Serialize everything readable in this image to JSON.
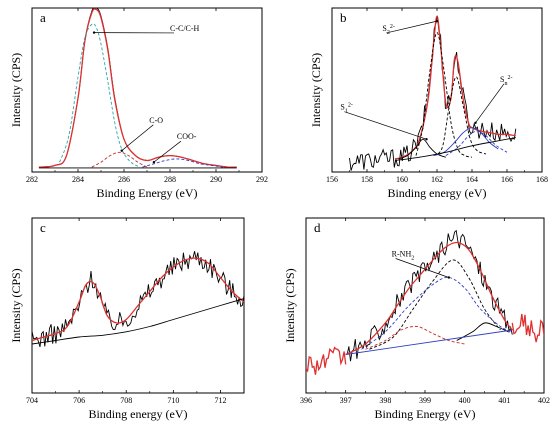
{
  "chart_data": [
    {
      "id": "a",
      "type": "line",
      "panel_label": "a",
      "xlabel": "Binding Energy (eV)",
      "ylabel": "Intensity (CPS)",
      "xlim": [
        282,
        292
      ],
      "ylim": [
        0,
        1
      ],
      "xticks": [
        "282",
        "284",
        "286",
        "288",
        "290",
        "292"
      ],
      "series": [
        {
          "color": "#000000",
          "style": "solid",
          "x": [
            282.3,
            283.0,
            283.5,
            284.0,
            284.3,
            284.6,
            284.8,
            285.0,
            285.3,
            285.6,
            286.0,
            286.5,
            287.0,
            287.5,
            288.0,
            288.5,
            289.0,
            289.5,
            290.0,
            290.5,
            290.9
          ],
          "y": [
            0.03,
            0.04,
            0.1,
            0.45,
            0.8,
            0.98,
            1.0,
            0.95,
            0.75,
            0.45,
            0.2,
            0.1,
            0.07,
            0.09,
            0.1,
            0.09,
            0.07,
            0.05,
            0.04,
            0.03,
            0.03
          ]
        },
        {
          "color": "#e03030",
          "style": "solid",
          "x": [
            282.3,
            283.0,
            283.5,
            284.0,
            284.3,
            284.6,
            284.8,
            285.0,
            285.3,
            285.6,
            286.0,
            286.5,
            287.0,
            287.5,
            288.0,
            288.5,
            289.0,
            289.5,
            290.0,
            290.5,
            290.9
          ],
          "y": [
            0.03,
            0.04,
            0.1,
            0.45,
            0.8,
            0.97,
            0.99,
            0.94,
            0.74,
            0.44,
            0.2,
            0.1,
            0.07,
            0.09,
            0.1,
            0.09,
            0.07,
            0.05,
            0.04,
            0.03,
            0.03
          ]
        },
        {
          "color": "#2aa7a7",
          "style": "dashed",
          "x": [
            283.2,
            283.6,
            284.0,
            284.3,
            284.6,
            284.8,
            285.0,
            285.3,
            285.6,
            285.9,
            286.3,
            286.7
          ],
          "y": [
            0.06,
            0.22,
            0.58,
            0.82,
            0.9,
            0.88,
            0.78,
            0.55,
            0.3,
            0.14,
            0.06,
            0.03
          ]
        },
        {
          "color": "#cc2a2a",
          "style": "dashed",
          "x": [
            284.6,
            285.0,
            285.4,
            285.8,
            286.2,
            286.6,
            287.0
          ],
          "y": [
            0.03,
            0.06,
            0.1,
            0.12,
            0.1,
            0.06,
            0.03
          ]
        },
        {
          "color": "#3040c0",
          "style": "dashed",
          "x": [
            286.8,
            287.3,
            287.8,
            288.3,
            288.8,
            289.3,
            289.8,
            290.3
          ],
          "y": [
            0.03,
            0.05,
            0.07,
            0.08,
            0.07,
            0.05,
            0.04,
            0.03
          ]
        },
        {
          "color": "#000000",
          "style": "solid",
          "x": [
            282.3,
            290.9
          ],
          "y": [
            0.025,
            0.025
          ]
        }
      ],
      "annotations": [
        "C-C/C-H",
        "C-O",
        "COO-"
      ]
    },
    {
      "id": "b",
      "type": "line",
      "panel_label": "b",
      "xlabel": "Binding energy (eV)",
      "ylabel": "Intensity (CPS)",
      "xlim": [
        156,
        168
      ],
      "ylim": [
        0,
        1
      ],
      "xticks": [
        "156",
        "158",
        "160",
        "162",
        "164",
        "166",
        "168"
      ],
      "series": [
        {
          "color": "#000000",
          "style": "noisy",
          "x": [
            157.0,
            158.0,
            159.0,
            160.0,
            160.5,
            161.0,
            161.5,
            161.8,
            162.0,
            162.2,
            162.5,
            162.8,
            163.0,
            163.2,
            163.5,
            163.8,
            164.0,
            164.5,
            165.0,
            165.5,
            166.0,
            166.5
          ],
          "y": [
            0.06,
            0.07,
            0.08,
            0.09,
            0.12,
            0.2,
            0.45,
            0.8,
            0.97,
            0.8,
            0.42,
            0.45,
            0.7,
            0.68,
            0.45,
            0.3,
            0.27,
            0.26,
            0.25,
            0.24,
            0.24,
            0.22
          ]
        },
        {
          "color": "#e03030",
          "style": "solid",
          "x": [
            159.6,
            160.0,
            160.5,
            161.0,
            161.5,
            161.8,
            162.0,
            162.2,
            162.5,
            162.8,
            163.0,
            163.2,
            163.5,
            163.8,
            164.0,
            164.5,
            165.0,
            165.5,
            166.0,
            166.5
          ],
          "y": [
            0.08,
            0.09,
            0.12,
            0.2,
            0.45,
            0.78,
            0.95,
            0.78,
            0.42,
            0.45,
            0.69,
            0.67,
            0.44,
            0.3,
            0.27,
            0.25,
            0.24,
            0.23,
            0.23,
            0.22
          ]
        },
        {
          "color": "#000000",
          "style": "dashed",
          "x": [
            160.8,
            161.2,
            161.6,
            162.0,
            162.4,
            162.8,
            163.2,
            163.6,
            164.0
          ],
          "y": [
            0.1,
            0.28,
            0.62,
            0.85,
            0.62,
            0.3,
            0.14,
            0.1,
            0.09
          ]
        },
        {
          "color": "#000000",
          "style": "dashed",
          "x": [
            161.8,
            162.3,
            162.7,
            163.1,
            163.5,
            163.9,
            164.3,
            164.8
          ],
          "y": [
            0.1,
            0.15,
            0.4,
            0.58,
            0.4,
            0.2,
            0.13,
            0.11
          ]
        },
        {
          "color": "#000000",
          "style": "solid",
          "x": [
            159.8,
            160.3,
            160.8,
            161.2,
            161.6,
            162.0,
            162.5
          ],
          "y": [
            0.08,
            0.1,
            0.15,
            0.2,
            0.15,
            0.11,
            0.09
          ]
        },
        {
          "color": "#3040c0",
          "style": "solid",
          "x": [
            161.8,
            162.4,
            163.0,
            163.5,
            164.0,
            164.5,
            165.0,
            165.5
          ],
          "y": [
            0.1,
            0.12,
            0.18,
            0.24,
            0.27,
            0.24,
            0.18,
            0.14
          ]
        },
        {
          "color": "#3040c0",
          "style": "dashed",
          "x": [
            162.5,
            163.2,
            163.8,
            164.3,
            164.8,
            165.4,
            166.0
          ],
          "y": [
            0.1,
            0.15,
            0.22,
            0.25,
            0.22,
            0.16,
            0.12
          ]
        },
        {
          "color": "#000000",
          "style": "solid",
          "x": [
            159.6,
            161.0,
            162.5,
            164.0,
            165.5,
            166.5
          ],
          "y": [
            0.07,
            0.09,
            0.12,
            0.16,
            0.19,
            0.21
          ]
        }
      ],
      "annotations": [
        "S",
        "S",
        "S"
      ]
    },
    {
      "id": "c",
      "type": "line",
      "panel_label": "c",
      "xlabel": "Binding energy (eV)",
      "ylabel": "Intensity (CPS)",
      "xlim": [
        704,
        713
      ],
      "ylim": [
        0,
        1
      ],
      "xticks": [
        "704",
        "706",
        "708",
        "710",
        "712"
      ],
      "series": [
        {
          "color": "#000000",
          "style": "noisy",
          "x": [
            704.0,
            704.5,
            705.0,
            705.5,
            706.0,
            706.3,
            706.6,
            706.9,
            707.2,
            707.6,
            708.0,
            708.5,
            709.0,
            709.5,
            710.0,
            710.5,
            711.0,
            711.5,
            712.0,
            712.5,
            713.0
          ],
          "y": [
            0.3,
            0.32,
            0.34,
            0.38,
            0.5,
            0.62,
            0.66,
            0.55,
            0.42,
            0.4,
            0.42,
            0.5,
            0.58,
            0.66,
            0.72,
            0.76,
            0.78,
            0.74,
            0.66,
            0.58,
            0.54
          ]
        },
        {
          "color": "#e03030",
          "style": "solid",
          "x": [
            704.0,
            704.5,
            705.0,
            705.5,
            706.0,
            706.3,
            706.6,
            706.9,
            707.2,
            707.6,
            708.0,
            708.5,
            709.0,
            709.5,
            710.0,
            710.5,
            711.0,
            711.5,
            712.0,
            712.5,
            713.0
          ],
          "y": [
            0.3,
            0.32,
            0.34,
            0.38,
            0.52,
            0.62,
            0.63,
            0.55,
            0.44,
            0.4,
            0.42,
            0.5,
            0.58,
            0.66,
            0.72,
            0.76,
            0.77,
            0.74,
            0.66,
            0.58,
            0.52
          ]
        },
        {
          "color": "#000000",
          "style": "solid",
          "x": [
            704.0,
            705.0,
            706.0,
            707.0,
            708.0,
            709.0,
            710.0,
            711.0,
            712.0,
            713.0
          ],
          "y": [
            0.28,
            0.3,
            0.32,
            0.33,
            0.35,
            0.38,
            0.42,
            0.46,
            0.5,
            0.54
          ]
        }
      ],
      "annotations": []
    },
    {
      "id": "d",
      "type": "line",
      "panel_label": "d",
      "xlabel": "Binding Energy (eV)",
      "ylabel": "Intensity (CPS)",
      "xlim": [
        396,
        402
      ],
      "ylim": [
        0,
        1
      ],
      "xticks": [
        "396",
        "397",
        "398",
        "399",
        "400",
        "401",
        "402"
      ],
      "series": [
        {
          "color": "#e03030",
          "style": "noisy",
          "x": [
            396.0,
            396.3,
            396.6,
            397.0
          ],
          "y": [
            0.18,
            0.16,
            0.2,
            0.2
          ]
        },
        {
          "color": "#e03030",
          "style": "noisy",
          "x": [
            401.2,
            401.5,
            401.8,
            402.0
          ],
          "y": [
            0.36,
            0.4,
            0.34,
            0.37
          ]
        },
        {
          "color": "#000000",
          "style": "noisy",
          "x": [
            397.0,
            397.5,
            398.0,
            398.3,
            398.6,
            398.9,
            399.2,
            399.5,
            399.8,
            400.1,
            400.4,
            400.7,
            401.0,
            401.2
          ],
          "y": [
            0.22,
            0.28,
            0.4,
            0.52,
            0.6,
            0.68,
            0.76,
            0.84,
            0.9,
            0.84,
            0.7,
            0.55,
            0.42,
            0.36
          ]
        },
        {
          "color": "#e03030",
          "style": "solid",
          "x": [
            397.0,
            397.5,
            398.0,
            398.3,
            398.6,
            398.9,
            399.2,
            399.5,
            399.8,
            400.1,
            400.4,
            400.7,
            401.0,
            401.2
          ],
          "y": [
            0.22,
            0.28,
            0.4,
            0.5,
            0.6,
            0.68,
            0.76,
            0.83,
            0.86,
            0.82,
            0.7,
            0.55,
            0.42,
            0.36
          ]
        },
        {
          "color": "#000000",
          "style": "dashed",
          "x": [
            397.6,
            398.2,
            398.7,
            399.2,
            399.7,
            400.1,
            400.5,
            400.9
          ],
          "y": [
            0.25,
            0.32,
            0.48,
            0.64,
            0.76,
            0.66,
            0.48,
            0.36
          ]
        },
        {
          "color": "#3040c0",
          "style": "dashed",
          "x": [
            397.4,
            398.0,
            398.6,
            399.2,
            399.6,
            400.0,
            400.4,
            400.9,
            401.2
          ],
          "y": [
            0.25,
            0.35,
            0.5,
            0.62,
            0.66,
            0.6,
            0.48,
            0.38,
            0.35
          ]
        },
        {
          "color": "#cc2a2a",
          "style": "dashed",
          "x": [
            397.5,
            398.0,
            398.4,
            398.8,
            399.2,
            399.6,
            400.0
          ],
          "y": [
            0.25,
            0.3,
            0.36,
            0.38,
            0.34,
            0.3,
            0.28
          ]
        },
        {
          "color": "#000000",
          "style": "solid",
          "x": [
            399.8,
            400.2,
            400.5,
            400.8,
            401.1
          ],
          "y": [
            0.3,
            0.35,
            0.4,
            0.38,
            0.35
          ]
        },
        {
          "color": "#3040c0",
          "style": "solid",
          "x": [
            397.0,
            401.2
          ],
          "y": [
            0.22,
            0.36
          ]
        }
      ],
      "annotations": [
        "R-NH"
      ]
    }
  ]
}
